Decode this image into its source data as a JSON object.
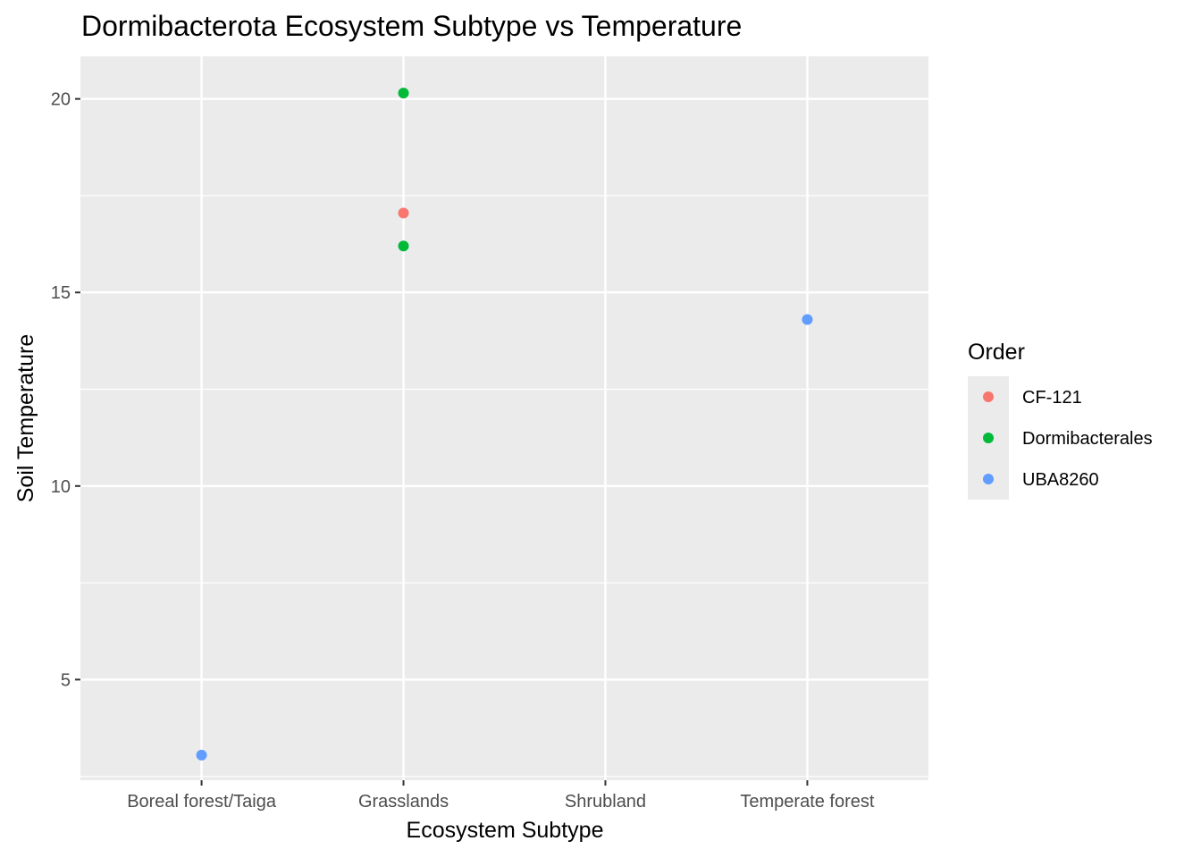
{
  "chart_data": {
    "type": "scatter",
    "title": "Dormibacterota Ecosystem Subtype vs Temperature",
    "xlabel": "Ecosystem Subtype",
    "ylabel": "Soil Temperature",
    "categories": [
      "Boreal forest/Taiga",
      "Grasslands",
      "Shrubland",
      "Temperate forest"
    ],
    "ylim": [
      2.4,
      21.1
    ],
    "yticks": [
      5,
      10,
      15,
      20
    ],
    "grid": true,
    "legend": {
      "title": "Order",
      "position": "right"
    },
    "series": [
      {
        "name": "CF-121",
        "color": "#F8766D",
        "points": [
          {
            "x": "Grasslands",
            "y": 17.05
          }
        ]
      },
      {
        "name": "Dormibacterales",
        "color": "#00BA38",
        "points": [
          {
            "x": "Grasslands",
            "y": 20.15
          },
          {
            "x": "Grasslands",
            "y": 16.2
          }
        ]
      },
      {
        "name": "UBA8260",
        "color": "#619CFF",
        "points": [
          {
            "x": "Boreal forest/Taiga",
            "y": 3.05
          },
          {
            "x": "Temperate forest",
            "y": 14.3
          }
        ]
      }
    ]
  }
}
